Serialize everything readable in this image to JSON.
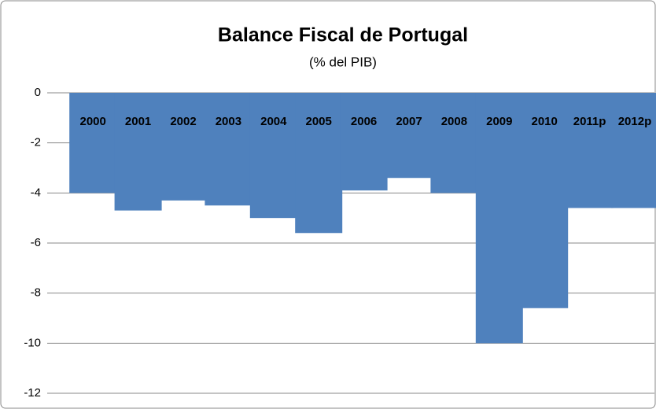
{
  "chart_data": {
    "type": "bar",
    "title": "Balance Fiscal de Portugal",
    "subtitle": "(% del PIB)",
    "categories": [
      "2000",
      "2001",
      "2002",
      "2003",
      "2004",
      "2005",
      "2006",
      "2007",
      "2008",
      "2009",
      "2010",
      "2011p",
      "2012p"
    ],
    "values": [
      -4.0,
      -4.7,
      -4.3,
      -4.5,
      -5.0,
      -5.6,
      -3.9,
      -3.4,
      -4.0,
      -10.0,
      -8.6,
      -4.6,
      -4.6
    ],
    "color": "#4f81bd",
    "ylim": [
      -12,
      0
    ],
    "yticks": [
      0,
      -2,
      -4,
      -6,
      -8,
      -10,
      -12
    ],
    "grid": true
  }
}
